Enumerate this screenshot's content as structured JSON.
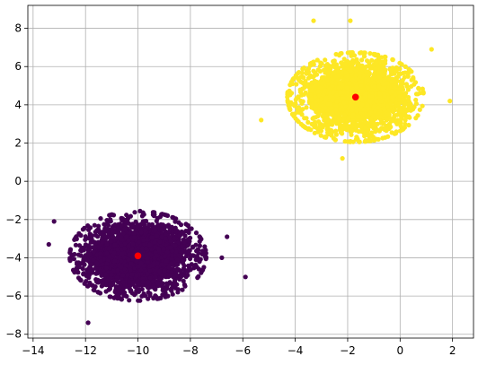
{
  "chart_data": {
    "type": "scatter",
    "title": "",
    "xlabel": "",
    "ylabel": "",
    "xlim": [
      -14.2,
      2.8
    ],
    "ylim": [
      -8.2,
      9.2
    ],
    "x_ticks": [
      -14,
      -12,
      -10,
      -8,
      -6,
      -4,
      -2,
      0,
      2
    ],
    "x_tick_labels": [
      "−14",
      "−12",
      "−10",
      "−8",
      "−6",
      "−4",
      "−2",
      "0",
      "2"
    ],
    "y_ticks": [
      -8,
      -6,
      -4,
      -2,
      0,
      2,
      4,
      6,
      8
    ],
    "y_tick_labels": [
      "−8",
      "−6",
      "−4",
      "−2",
      "0",
      "2",
      "4",
      "6",
      "8"
    ],
    "grid": true,
    "legend": "none",
    "series": [
      {
        "color": "#440154",
        "cluster": {
          "center": [
            -10.0,
            -3.9
          ],
          "std": [
            1.0,
            0.9
          ],
          "count": 2500
        },
        "outliers": [
          [
            -13.2,
            -2.1
          ],
          [
            -11.9,
            -7.4
          ],
          [
            -6.6,
            -2.9
          ],
          [
            -5.9,
            -5.0
          ],
          [
            -13.4,
            -3.3
          ],
          [
            -6.8,
            -4.0
          ]
        ]
      },
      {
        "color": "#fde725",
        "cluster": {
          "center": [
            -1.7,
            4.4
          ],
          "std": [
            1.0,
            0.9
          ],
          "count": 2500
        },
        "outliers": [
          [
            -3.3,
            8.4
          ],
          [
            -1.9,
            8.4
          ],
          [
            -5.3,
            3.2
          ],
          [
            1.2,
            6.9
          ],
          [
            1.9,
            4.2
          ],
          [
            -2.2,
            1.2
          ]
        ]
      }
    ],
    "centroids": {
      "color": "#ff0000",
      "points": [
        [
          -10.0,
          -3.9
        ],
        [
          -1.7,
          4.4
        ]
      ]
    }
  }
}
